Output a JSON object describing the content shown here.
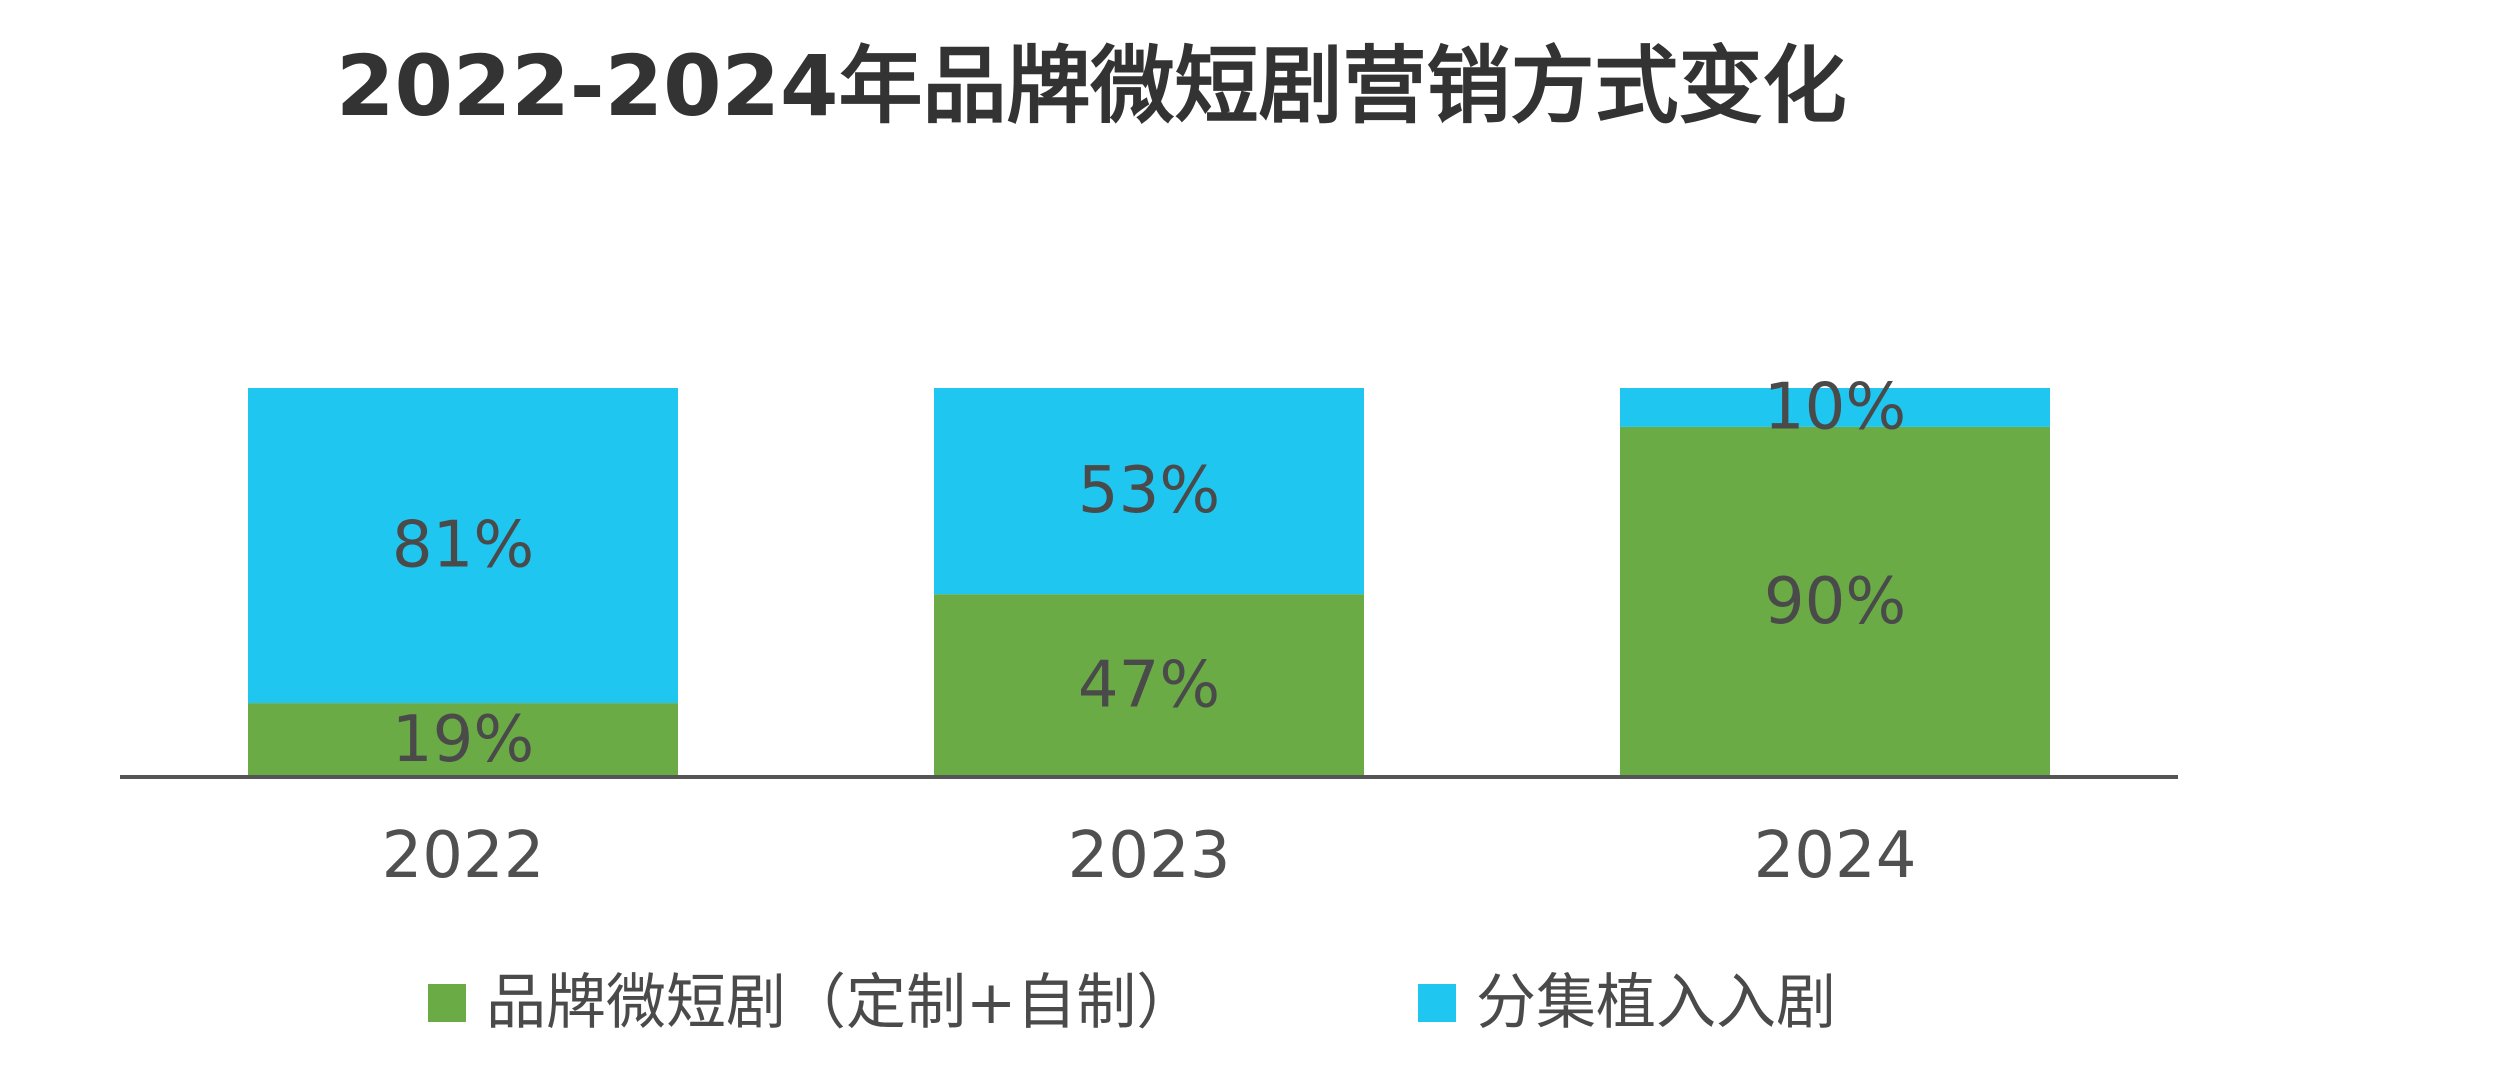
{
  "chart_data": {
    "type": "bar",
    "stacked": true,
    "title": "2022-2024年品牌微短剧营销方式变化",
    "categories": [
      "2022",
      "2023",
      "2024"
    ],
    "series": [
      {
        "name": "品牌微短剧（定制+自制）",
        "values": [
          19,
          47,
          90
        ],
        "labels": [
          "19%",
          "47%",
          "90%"
        ],
        "color": "#6aab46"
      },
      {
        "name": "分集植入入剧",
        "values": [
          81,
          53,
          10
        ],
        "labels": [
          "81%",
          "53%",
          "10%"
        ],
        "color": "#1fc6ef"
      }
    ],
    "ylim": [
      0,
      100
    ],
    "grid": false,
    "legend_position": "bottom",
    "colors": {
      "axis": "#555555",
      "title": "#333333",
      "label": "#4a4a4a"
    }
  }
}
